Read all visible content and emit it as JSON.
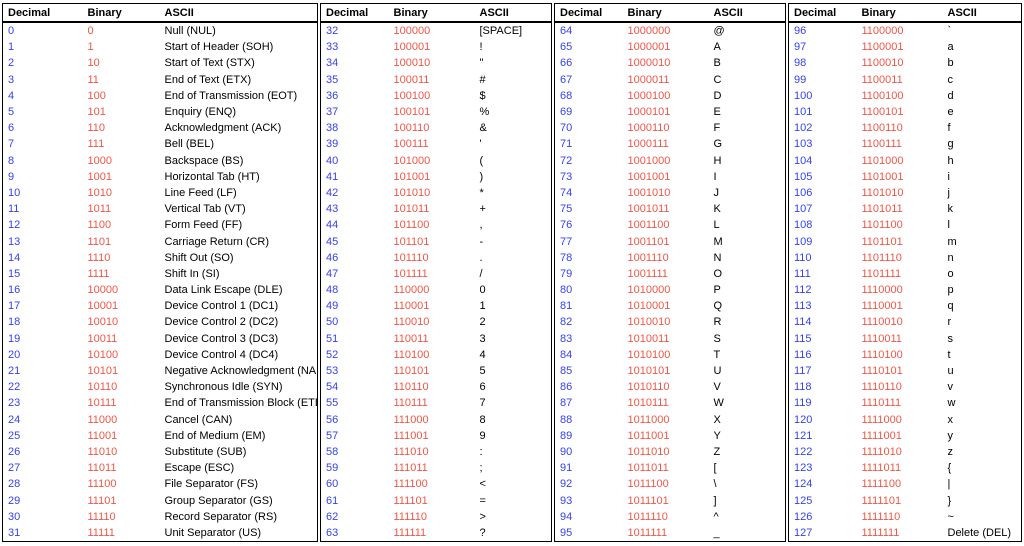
{
  "table": {
    "columns": [
      "Decimal",
      "Binary",
      "ASCII"
    ],
    "colors": {
      "decimal_text": "#3542ee",
      "binary_text": "#ef5646",
      "ascii_text": "#000000",
      "border": "#000000",
      "background": "#ffffff"
    },
    "blocks": [
      {
        "rows": [
          [
            "0",
            "0",
            "Null (NUL)"
          ],
          [
            "1",
            "1",
            "Start of Header (SOH)"
          ],
          [
            "2",
            "10",
            "Start of Text (STX)"
          ],
          [
            "3",
            "11",
            "End of Text (ETX)"
          ],
          [
            "4",
            "100",
            "End of Transmission (EOT)"
          ],
          [
            "5",
            "101",
            "Enquiry (ENQ)"
          ],
          [
            "6",
            "110",
            "Acknowledgment (ACK)"
          ],
          [
            "7",
            "111",
            "Bell (BEL)"
          ],
          [
            "8",
            "1000",
            "Backspace (BS)"
          ],
          [
            "9",
            "1001",
            "Horizontal Tab (HT)"
          ],
          [
            "10",
            "1010",
            "Line Feed (LF)"
          ],
          [
            "11",
            "1011",
            "Vertical Tab (VT)"
          ],
          [
            "12",
            "1100",
            "Form Feed (FF)"
          ],
          [
            "13",
            "1101",
            "Carriage Return (CR)"
          ],
          [
            "14",
            "1110",
            "Shift Out (SO)"
          ],
          [
            "15",
            "1111",
            "Shift In (SI)"
          ],
          [
            "16",
            "10000",
            "Data Link Escape (DLE)"
          ],
          [
            "17",
            "10001",
            "Device Control 1 (DC1)"
          ],
          [
            "18",
            "10010",
            "Device Control 2 (DC2)"
          ],
          [
            "19",
            "10011",
            "Device Control 3 (DC3)"
          ],
          [
            "20",
            "10100",
            "Device Control 4 (DC4)"
          ],
          [
            "21",
            "10101",
            "Negative Acknowledgment (NAK)"
          ],
          [
            "22",
            "10110",
            "Synchronous Idle (SYN)"
          ],
          [
            "23",
            "10111",
            "End of Transmission Block (ETB)"
          ],
          [
            "24",
            "11000",
            "Cancel (CAN)"
          ],
          [
            "25",
            "11001",
            "End of Medium (EM)"
          ],
          [
            "26",
            "11010",
            "Substitute (SUB)"
          ],
          [
            "27",
            "11011",
            "Escape (ESC)"
          ],
          [
            "28",
            "11100",
            "File Separator (FS)"
          ],
          [
            "29",
            "11101",
            "Group Separator (GS)"
          ],
          [
            "30",
            "11110",
            "Record Separator (RS)"
          ],
          [
            "31",
            "11111",
            "Unit Separator (US)"
          ]
        ]
      },
      {
        "rows": [
          [
            "32",
            "100000",
            "[SPACE]"
          ],
          [
            "33",
            "100001",
            "!"
          ],
          [
            "34",
            "100010",
            "\""
          ],
          [
            "35",
            "100011",
            "#"
          ],
          [
            "36",
            "100100",
            "$"
          ],
          [
            "37",
            "100101",
            "%"
          ],
          [
            "38",
            "100110",
            "&"
          ],
          [
            "39",
            "100111",
            "'"
          ],
          [
            "40",
            "101000",
            "("
          ],
          [
            "41",
            "101001",
            ")"
          ],
          [
            "42",
            "101010",
            "*"
          ],
          [
            "43",
            "101011",
            "+"
          ],
          [
            "44",
            "101100",
            ","
          ],
          [
            "45",
            "101101",
            "-"
          ],
          [
            "46",
            "101110",
            "."
          ],
          [
            "47",
            "101111",
            "/"
          ],
          [
            "48",
            "110000",
            "0"
          ],
          [
            "49",
            "110001",
            "1"
          ],
          [
            "50",
            "110010",
            "2"
          ],
          [
            "51",
            "110011",
            "3"
          ],
          [
            "52",
            "110100",
            "4"
          ],
          [
            "53",
            "110101",
            "5"
          ],
          [
            "54",
            "110110",
            "6"
          ],
          [
            "55",
            "110111",
            "7"
          ],
          [
            "56",
            "111000",
            "8"
          ],
          [
            "57",
            "111001",
            "9"
          ],
          [
            "58",
            "111010",
            ":"
          ],
          [
            "59",
            "111011",
            ";"
          ],
          [
            "60",
            "111100",
            "<"
          ],
          [
            "61",
            "111101",
            "="
          ],
          [
            "62",
            "111110",
            ">"
          ],
          [
            "63",
            "111111",
            "?"
          ]
        ]
      },
      {
        "rows": [
          [
            "64",
            "1000000",
            "@"
          ],
          [
            "65",
            "1000001",
            "A"
          ],
          [
            "66",
            "1000010",
            "B"
          ],
          [
            "67",
            "1000011",
            "C"
          ],
          [
            "68",
            "1000100",
            "D"
          ],
          [
            "69",
            "1000101",
            "E"
          ],
          [
            "70",
            "1000110",
            "F"
          ],
          [
            "71",
            "1000111",
            "G"
          ],
          [
            "72",
            "1001000",
            "H"
          ],
          [
            "73",
            "1001001",
            "I"
          ],
          [
            "74",
            "1001010",
            "J"
          ],
          [
            "75",
            "1001011",
            "K"
          ],
          [
            "76",
            "1001100",
            "L"
          ],
          [
            "77",
            "1001101",
            "M"
          ],
          [
            "78",
            "1001110",
            "N"
          ],
          [
            "79",
            "1001111",
            "O"
          ],
          [
            "80",
            "1010000",
            "P"
          ],
          [
            "81",
            "1010001",
            "Q"
          ],
          [
            "82",
            "1010010",
            "R"
          ],
          [
            "83",
            "1010011",
            "S"
          ],
          [
            "84",
            "1010100",
            "T"
          ],
          [
            "85",
            "1010101",
            "U"
          ],
          [
            "86",
            "1010110",
            "V"
          ],
          [
            "87",
            "1010111",
            "W"
          ],
          [
            "88",
            "1011000",
            "X"
          ],
          [
            "89",
            "1011001",
            "Y"
          ],
          [
            "90",
            "1011010",
            "Z"
          ],
          [
            "91",
            "1011011",
            "["
          ],
          [
            "92",
            "1011100",
            "\\"
          ],
          [
            "93",
            "1011101",
            "]"
          ],
          [
            "94",
            "1011110",
            "^"
          ],
          [
            "95",
            "1011111",
            "_"
          ]
        ]
      },
      {
        "rows": [
          [
            "96",
            "1100000",
            "`"
          ],
          [
            "97",
            "1100001",
            "a"
          ],
          [
            "98",
            "1100010",
            "b"
          ],
          [
            "99",
            "1100011",
            "c"
          ],
          [
            "100",
            "1100100",
            "d"
          ],
          [
            "101",
            "1100101",
            "e"
          ],
          [
            "102",
            "1100110",
            "f"
          ],
          [
            "103",
            "1100111",
            "g"
          ],
          [
            "104",
            "1101000",
            "h"
          ],
          [
            "105",
            "1101001",
            "i"
          ],
          [
            "106",
            "1101010",
            "j"
          ],
          [
            "107",
            "1101011",
            "k"
          ],
          [
            "108",
            "1101100",
            "l"
          ],
          [
            "109",
            "1101101",
            "m"
          ],
          [
            "110",
            "1101110",
            "n"
          ],
          [
            "111",
            "1101111",
            "o"
          ],
          [
            "112",
            "1110000",
            "p"
          ],
          [
            "113",
            "1110001",
            "q"
          ],
          [
            "114",
            "1110010",
            "r"
          ],
          [
            "115",
            "1110011",
            "s"
          ],
          [
            "116",
            "1110100",
            "t"
          ],
          [
            "117",
            "1110101",
            "u"
          ],
          [
            "118",
            "1110110",
            "v"
          ],
          [
            "119",
            "1110111",
            "w"
          ],
          [
            "120",
            "1111000",
            "x"
          ],
          [
            "121",
            "1111001",
            "y"
          ],
          [
            "122",
            "1111010",
            "z"
          ],
          [
            "123",
            "1111011",
            "{"
          ],
          [
            "124",
            "1111100",
            "|"
          ],
          [
            "125",
            "1111101",
            "}"
          ],
          [
            "126",
            "1111110",
            "~"
          ],
          [
            "127",
            "1111111",
            "Delete (DEL)"
          ]
        ]
      }
    ]
  }
}
